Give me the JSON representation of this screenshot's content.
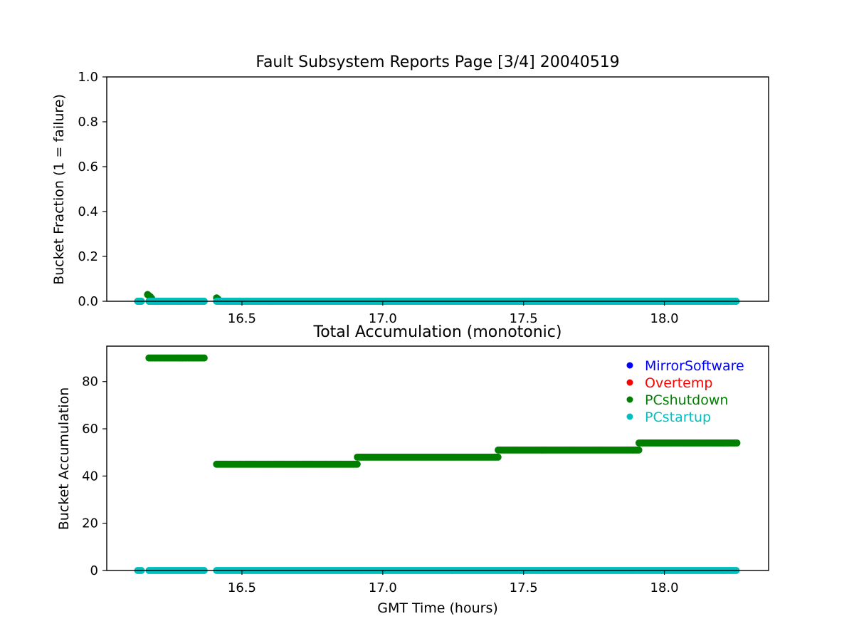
{
  "chart_data": [
    {
      "type": "scatter",
      "title": "Fault Subsystem Reports Page [3/4] 20040519",
      "xlabel": "",
      "ylabel": "Bucket Fraction (1 = failure)",
      "xlim": [
        16.02,
        18.37
      ],
      "ylim": [
        0.0,
        1.0
      ],
      "xticks": [
        "16.5",
        "17.0",
        "17.5",
        "18.0"
      ],
      "xtick_values": [
        16.5,
        17.0,
        17.5,
        18.0
      ],
      "yticks": [
        "0.0",
        "0.2",
        "0.4",
        "0.6",
        "0.8",
        "1.0"
      ],
      "ytick_values": [
        0.0,
        0.2,
        0.4,
        0.6,
        0.8,
        1.0
      ],
      "grid": false,
      "series": [
        {
          "color": "#008000",
          "segments": [
            {
              "x": [
                16.13,
                16.145
              ],
              "y": 0.0
            },
            {
              "x": [
                16.17,
                16.37
              ],
              "y": 0.0
            },
            {
              "x": [
                16.41,
                18.26
              ],
              "y": 0.0
            }
          ],
          "points": [
            {
              "x": 16.165,
              "y": 0.03
            },
            {
              "x": 16.17,
              "y": 0.025
            },
            {
              "x": 16.175,
              "y": 0.02
            },
            {
              "x": 16.18,
              "y": 0.012
            },
            {
              "x": 16.41,
              "y": 0.015
            },
            {
              "x": 16.415,
              "y": 0.01
            }
          ]
        },
        {
          "color": "#00bfbf",
          "segments": [
            {
              "x": [
                16.13,
                16.145
              ],
              "y": 0.0
            },
            {
              "x": [
                16.17,
                16.37
              ],
              "y": 0.0
            },
            {
              "x": [
                16.41,
                18.26
              ],
              "y": 0.0
            }
          ]
        }
      ]
    },
    {
      "type": "scatter",
      "title": "Total Accumulation (monotonic)",
      "xlabel": "GMT Time (hours)",
      "ylabel": "Bucket Accumulation",
      "xlim": [
        16.02,
        18.37
      ],
      "ylim": [
        0,
        95
      ],
      "xticks": [
        "16.5",
        "17.0",
        "17.5",
        "18.0"
      ],
      "xtick_values": [
        16.5,
        17.0,
        17.5,
        18.0
      ],
      "yticks": [
        "0",
        "20",
        "40",
        "60",
        "80"
      ],
      "ytick_values": [
        0,
        20,
        40,
        60,
        80
      ],
      "grid": false,
      "legend_position": "top-right",
      "series": [
        {
          "name": "MirrorSoftware",
          "color": "#0000ff",
          "segments": []
        },
        {
          "name": "Overtemp",
          "color": "#ff0000",
          "segments": []
        },
        {
          "name": "PCshutdown",
          "color": "#008000",
          "segments": [
            {
              "x": [
                16.17,
                16.37
              ],
              "y": 90
            },
            {
              "x": [
                16.41,
                16.91
              ],
              "y": 45
            },
            {
              "x": [
                16.91,
                17.41
              ],
              "y": 48
            },
            {
              "x": [
                17.41,
                17.91
              ],
              "y": 51
            },
            {
              "x": [
                17.91,
                18.26
              ],
              "y": 54
            }
          ]
        },
        {
          "name": "PCstartup",
          "color": "#00bfbf",
          "segments": [
            {
              "x": [
                16.13,
                16.145
              ],
              "y": 0
            },
            {
              "x": [
                16.17,
                16.37
              ],
              "y": 0
            },
            {
              "x": [
                16.41,
                18.26
              ],
              "y": 0
            }
          ]
        }
      ]
    }
  ]
}
